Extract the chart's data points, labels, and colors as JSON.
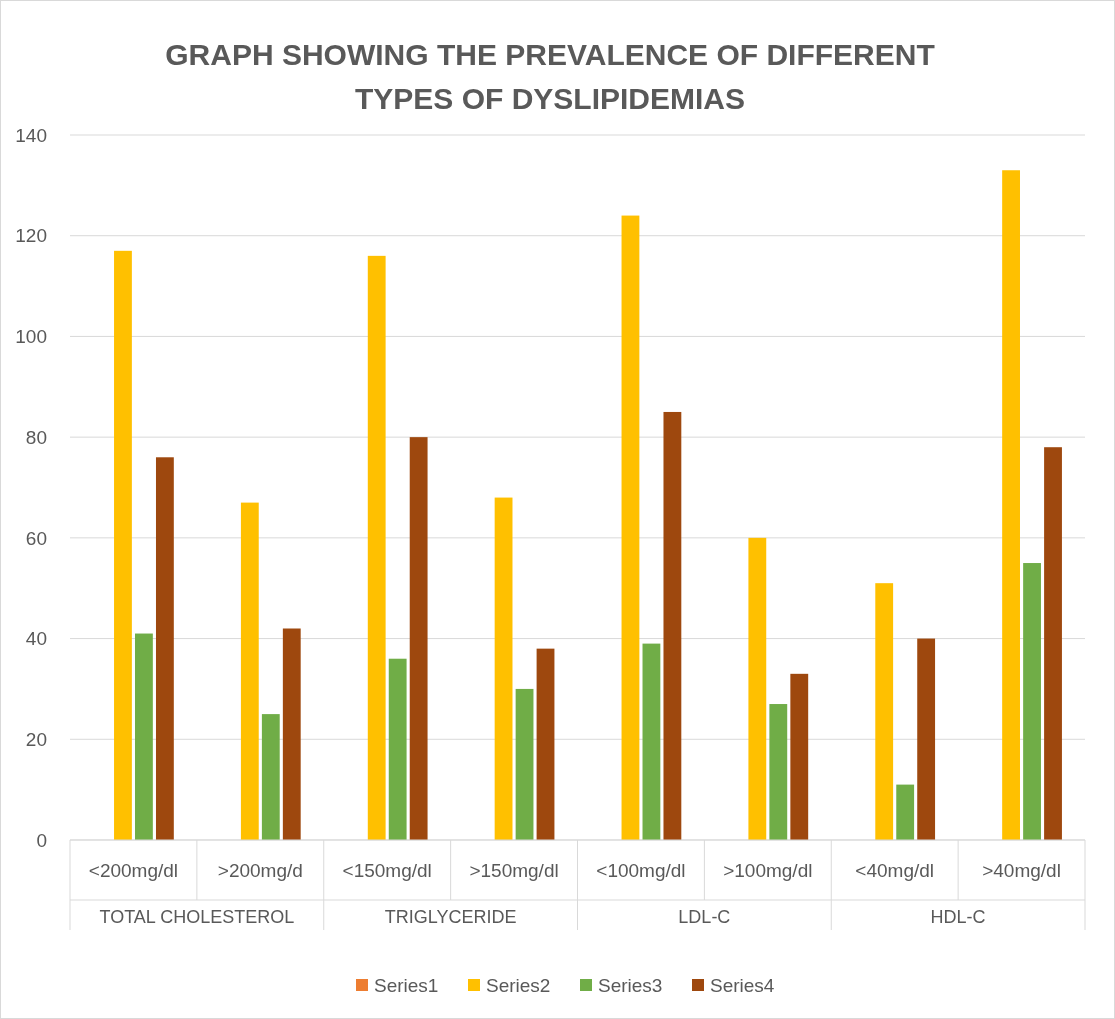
{
  "chart_data": {
    "type": "bar",
    "title": "GRAPH SHOWING THE PREVALENCE OF DIFFERENT TYPES OF DYSLIPIDEMIAS",
    "categories": [
      "<200mg/dl",
      ">200mg/d",
      "<150mg/dl",
      ">150mg/dl",
      "<100mg/dl",
      ">100mg/dl",
      "<40mg/dl",
      ">40mg/dl"
    ],
    "annotations": [
      "TOTAL CHOLESTEROL",
      "TRIGLYCERIDE",
      "LDL-C",
      "HDL-C"
    ],
    "series": [
      {
        "name": "Series1",
        "color": "#ed7d31",
        "values": [
          null,
          null,
          null,
          null,
          null,
          null,
          null,
          null
        ]
      },
      {
        "name": "Series2",
        "color": "#ffc000",
        "values": [
          117,
          67,
          116,
          68,
          124,
          60,
          51,
          133
        ]
      },
      {
        "name": "Series3",
        "color": "#70ad47",
        "values": [
          41,
          25,
          36,
          30,
          39,
          27,
          11,
          55
        ]
      },
      {
        "name": "Series4",
        "color": "#9e480e",
        "values": [
          76,
          42,
          80,
          38,
          85,
          33,
          40,
          78
        ]
      }
    ],
    "ylim": [
      0,
      140
    ],
    "yticks": [
      0,
      20,
      40,
      60,
      80,
      100,
      120,
      140
    ],
    "grid": "y",
    "legend": "bottom"
  }
}
